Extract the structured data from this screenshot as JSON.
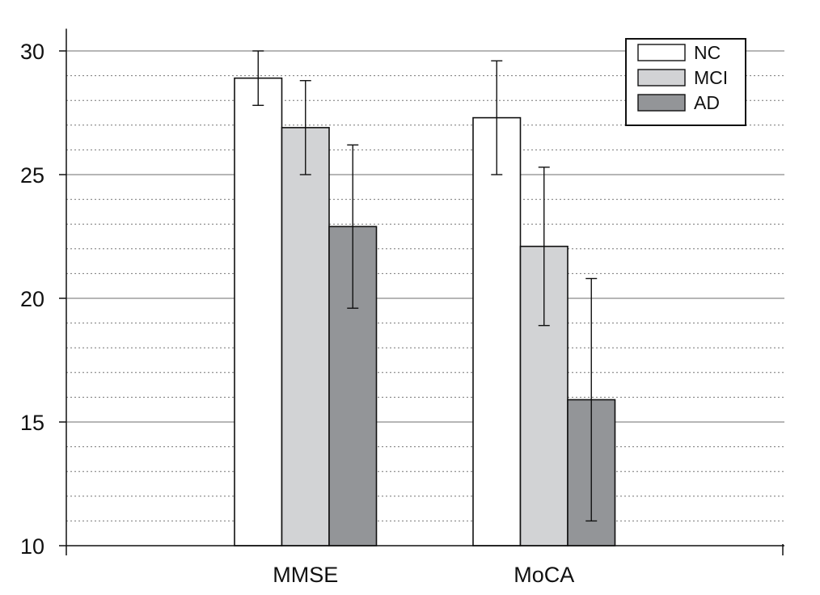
{
  "chart_data": {
    "type": "bar",
    "categories": [
      "MMSE",
      "MoCA"
    ],
    "series": [
      {
        "name": "NC",
        "values": [
          28.9,
          27.3
        ],
        "errors": [
          1.1,
          2.3
        ],
        "color": "#ffffff"
      },
      {
        "name": "MCI",
        "values": [
          26.9,
          22.1
        ],
        "errors": [
          1.9,
          3.2
        ],
        "color": "#d2d3d5"
      },
      {
        "name": "AD",
        "values": [
          22.9,
          15.9
        ],
        "errors": [
          3.3,
          4.9
        ],
        "color": "#939598"
      }
    ],
    "yticks": [
      10,
      15,
      20,
      25,
      30
    ],
    "ylim": [
      10,
      30.9
    ],
    "minor_step": 1,
    "grid": true,
    "legend_position": "top-right",
    "title": "",
    "xlabel": "",
    "ylabel": ""
  }
}
